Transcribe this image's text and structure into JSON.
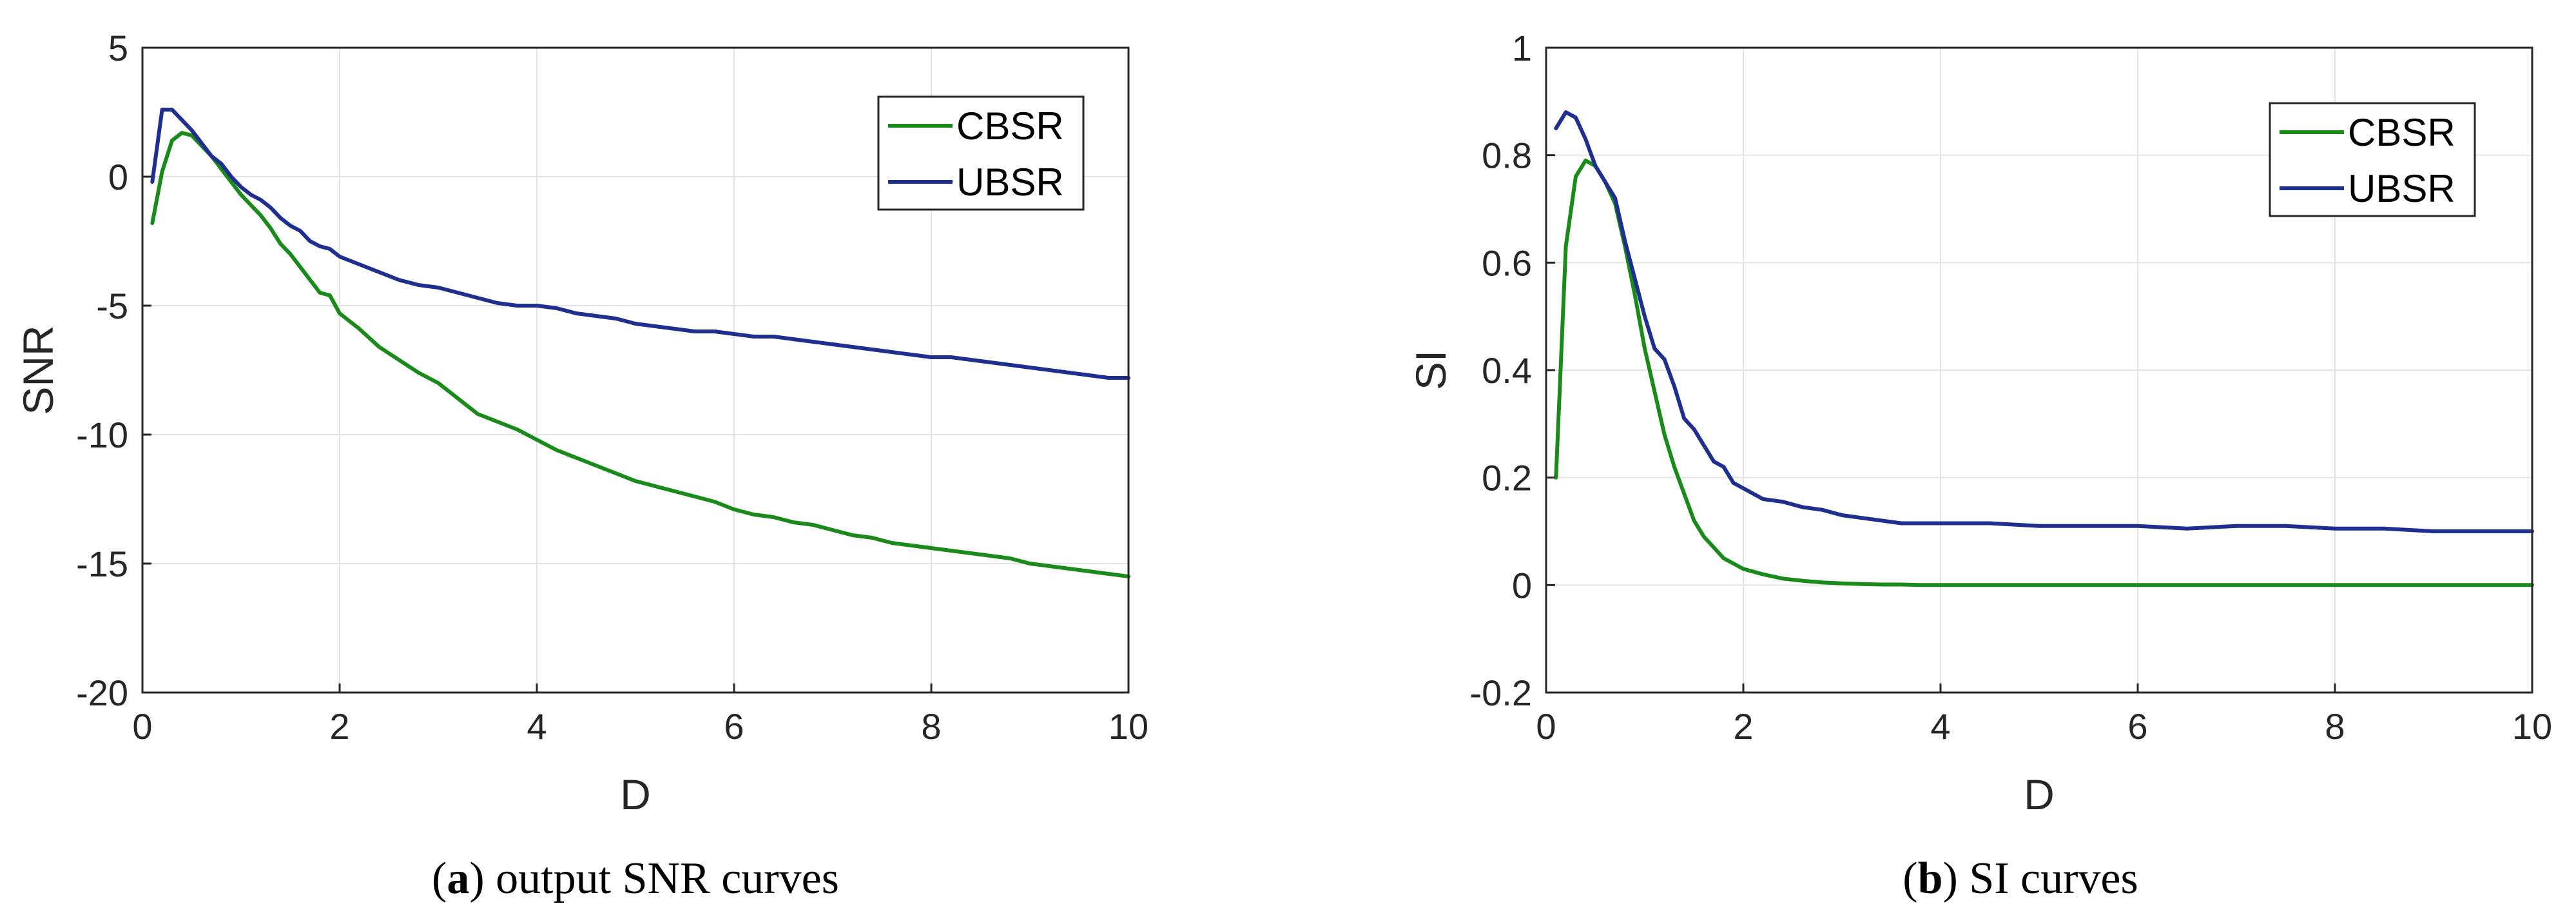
{
  "colors": {
    "CBSR": "#1a8a1a",
    "UBSR": "#1f2f8f",
    "grid": "#e3e3e3",
    "axis": "#262626"
  },
  "captions": [
    {
      "open": "(",
      "tag": "a",
      "close": ")",
      "text": " output SNR curves"
    },
    {
      "open": "(",
      "tag": "b",
      "close": ")",
      "text": " SI curves"
    }
  ],
  "chart_data": [
    {
      "type": "line",
      "title": "",
      "xlabel": "D",
      "ylabel": "SNR",
      "xlim": [
        0,
        10
      ],
      "ylim": [
        -20,
        5
      ],
      "xticks": [
        0,
        2,
        4,
        6,
        8,
        10
      ],
      "yticks": [
        -20,
        -15,
        -10,
        -5,
        0,
        5
      ],
      "grid": true,
      "legend_position": "top-right",
      "series": [
        {
          "name": "CBSR",
          "x": [
            0.1,
            0.2,
            0.3,
            0.4,
            0.5,
            0.6,
            0.7,
            0.8,
            0.9,
            1.0,
            1.1,
            1.2,
            1.3,
            1.4,
            1.5,
            1.6,
            1.7,
            1.8,
            1.9,
            2.0,
            2.2,
            2.4,
            2.6,
            2.8,
            3.0,
            3.2,
            3.4,
            3.6,
            3.8,
            4.0,
            4.2,
            4.4,
            4.6,
            4.8,
            5.0,
            5.2,
            5.4,
            5.6,
            5.8,
            6.0,
            6.2,
            6.4,
            6.6,
            6.8,
            7.0,
            7.2,
            7.4,
            7.6,
            7.8,
            8.0,
            8.2,
            8.4,
            8.6,
            8.8,
            9.0,
            9.2,
            9.4,
            9.6,
            9.8,
            10.0
          ],
          "y": [
            -1.8,
            0.2,
            1.4,
            1.7,
            1.6,
            1.2,
            0.8,
            0.3,
            -0.2,
            -0.7,
            -1.1,
            -1.5,
            -2.0,
            -2.6,
            -3.0,
            -3.5,
            -4.0,
            -4.5,
            -4.6,
            -5.3,
            -5.9,
            -6.6,
            -7.1,
            -7.6,
            -8.0,
            -8.6,
            -9.2,
            -9.5,
            -9.8,
            -10.2,
            -10.6,
            -10.9,
            -11.2,
            -11.5,
            -11.8,
            -12.0,
            -12.2,
            -12.4,
            -12.6,
            -12.9,
            -13.1,
            -13.2,
            -13.4,
            -13.5,
            -13.7,
            -13.9,
            -14.0,
            -14.2,
            -14.3,
            -14.4,
            -14.5,
            -14.6,
            -14.7,
            -14.8,
            -15.0,
            -15.1,
            -15.2,
            -15.3,
            -15.4,
            -15.5
          ]
        },
        {
          "name": "UBSR",
          "x": [
            0.1,
            0.2,
            0.3,
            0.4,
            0.5,
            0.6,
            0.7,
            0.8,
            0.9,
            1.0,
            1.1,
            1.2,
            1.3,
            1.4,
            1.5,
            1.6,
            1.7,
            1.8,
            1.9,
            2.0,
            2.2,
            2.4,
            2.6,
            2.8,
            3.0,
            3.2,
            3.4,
            3.6,
            3.8,
            4.0,
            4.2,
            4.4,
            4.6,
            4.8,
            5.0,
            5.2,
            5.4,
            5.6,
            5.8,
            6.0,
            6.2,
            6.4,
            6.6,
            6.8,
            7.0,
            7.2,
            7.4,
            7.6,
            7.8,
            8.0,
            8.2,
            8.4,
            8.6,
            8.8,
            9.0,
            9.2,
            9.4,
            9.6,
            9.8,
            10.0
          ],
          "y": [
            -0.2,
            2.6,
            2.6,
            2.2,
            1.8,
            1.3,
            0.8,
            0.5,
            0.0,
            -0.4,
            -0.7,
            -0.9,
            -1.2,
            -1.6,
            -1.9,
            -2.1,
            -2.5,
            -2.7,
            -2.8,
            -3.1,
            -3.4,
            -3.7,
            -4.0,
            -4.2,
            -4.3,
            -4.5,
            -4.7,
            -4.9,
            -5.0,
            -5.0,
            -5.1,
            -5.3,
            -5.4,
            -5.5,
            -5.7,
            -5.8,
            -5.9,
            -6.0,
            -6.0,
            -6.1,
            -6.2,
            -6.2,
            -6.3,
            -6.4,
            -6.5,
            -6.6,
            -6.7,
            -6.8,
            -6.9,
            -7.0,
            -7.0,
            -7.1,
            -7.2,
            -7.3,
            -7.4,
            -7.5,
            -7.6,
            -7.7,
            -7.8,
            -7.8
          ]
        }
      ]
    },
    {
      "type": "line",
      "title": "",
      "xlabel": "D",
      "ylabel": "SI",
      "xlim": [
        0,
        10
      ],
      "ylim": [
        -0.2,
        1
      ],
      "xticks": [
        0,
        2,
        4,
        6,
        8,
        10
      ],
      "yticks": [
        -0.2,
        0,
        0.2,
        0.4,
        0.6,
        0.8,
        1
      ],
      "grid": true,
      "legend_position": "top-right",
      "series": [
        {
          "name": "CBSR",
          "x": [
            0.1,
            0.2,
            0.3,
            0.4,
            0.5,
            0.6,
            0.7,
            0.8,
            0.9,
            1.0,
            1.1,
            1.2,
            1.3,
            1.4,
            1.5,
            1.6,
            1.7,
            1.8,
            1.9,
            2.0,
            2.2,
            2.4,
            2.6,
            2.8,
            3.0,
            3.2,
            3.4,
            3.6,
            3.8,
            4.0,
            5.0,
            6.0,
            7.0,
            8.0,
            9.0,
            10.0
          ],
          "y": [
            0.2,
            0.63,
            0.76,
            0.79,
            0.78,
            0.75,
            0.71,
            0.63,
            0.54,
            0.44,
            0.36,
            0.28,
            0.22,
            0.17,
            0.12,
            0.09,
            0.07,
            0.05,
            0.04,
            0.03,
            0.02,
            0.012,
            0.008,
            0.005,
            0.003,
            0.002,
            0.001,
            0.001,
            0.0,
            0.0,
            0.0,
            0.0,
            0.0,
            0.0,
            0.0,
            0.0
          ]
        },
        {
          "name": "UBSR",
          "x": [
            0.1,
            0.2,
            0.3,
            0.4,
            0.5,
            0.6,
            0.7,
            0.8,
            0.9,
            1.0,
            1.1,
            1.2,
            1.3,
            1.4,
            1.5,
            1.6,
            1.7,
            1.8,
            1.9,
            2.0,
            2.2,
            2.4,
            2.6,
            2.8,
            3.0,
            3.2,
            3.4,
            3.6,
            3.8,
            4.0,
            4.5,
            5.0,
            5.5,
            6.0,
            6.5,
            7.0,
            7.5,
            8.0,
            8.5,
            9.0,
            9.5,
            10.0
          ],
          "y": [
            0.85,
            0.88,
            0.87,
            0.83,
            0.78,
            0.75,
            0.72,
            0.64,
            0.57,
            0.5,
            0.44,
            0.42,
            0.37,
            0.31,
            0.29,
            0.26,
            0.23,
            0.22,
            0.19,
            0.18,
            0.16,
            0.155,
            0.145,
            0.14,
            0.13,
            0.125,
            0.12,
            0.115,
            0.115,
            0.115,
            0.115,
            0.11,
            0.11,
            0.11,
            0.105,
            0.11,
            0.11,
            0.105,
            0.105,
            0.1,
            0.1,
            0.1
          ]
        }
      ]
    }
  ]
}
